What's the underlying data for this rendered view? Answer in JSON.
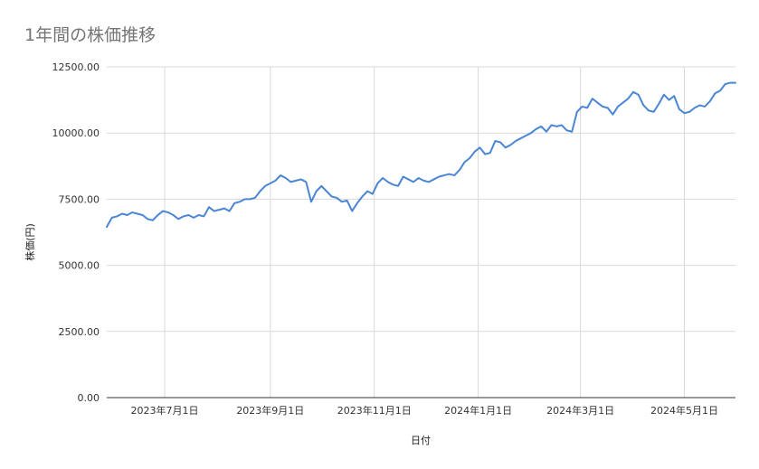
{
  "colors": {
    "line": "#4a86d4",
    "grid": "#d9d9d9",
    "baseline": "#333333",
    "title": "#757575"
  },
  "chart_data": {
    "type": "line",
    "title": "1年間の株価推移",
    "xlabel": "日付",
    "ylabel": "株価(円)",
    "ylim": [
      0,
      12500
    ],
    "yticks": [
      0,
      2500,
      5000,
      7500,
      10000,
      12500
    ],
    "ytick_labels": [
      "0.00",
      "2500.00",
      "5000.00",
      "7500.00",
      "10000.00",
      "12500.00"
    ],
    "xlim": [
      "2023-05-28",
      "2024-05-31"
    ],
    "xticks": [
      "2023-07-01",
      "2023-09-01",
      "2023-11-01",
      "2024-01-01",
      "2024-03-01",
      "2024-05-01"
    ],
    "xtick_labels": [
      "2023年7月1日",
      "2023年9月1日",
      "2023年11月1日",
      "2024年1月1日",
      "2024年3月1日",
      "2024年5月1日"
    ],
    "grid": true,
    "legend": "none",
    "series": [
      {
        "x": [
          "2023-05-28",
          "2023-05-31",
          "2023-06-03",
          "2023-06-06",
          "2023-06-09",
          "2023-06-12",
          "2023-06-15",
          "2023-06-18",
          "2023-06-21",
          "2023-06-24",
          "2023-06-27",
          "2023-06-30",
          "2023-07-03",
          "2023-07-06",
          "2023-07-09",
          "2023-07-12",
          "2023-07-15",
          "2023-07-18",
          "2023-07-21",
          "2023-07-24",
          "2023-07-27",
          "2023-07-30",
          "2023-08-02",
          "2023-08-05",
          "2023-08-08",
          "2023-08-11",
          "2023-08-14",
          "2023-08-17",
          "2023-08-20",
          "2023-08-23",
          "2023-08-26",
          "2023-08-29",
          "2023-09-01",
          "2023-09-04",
          "2023-09-07",
          "2023-09-10",
          "2023-09-13",
          "2023-09-16",
          "2023-09-19",
          "2023-09-22",
          "2023-09-25",
          "2023-09-28",
          "2023-10-01",
          "2023-10-04",
          "2023-10-07",
          "2023-10-10",
          "2023-10-13",
          "2023-10-16",
          "2023-10-19",
          "2023-10-22",
          "2023-10-25",
          "2023-10-28",
          "2023-10-31",
          "2023-11-03",
          "2023-11-06",
          "2023-11-09",
          "2023-11-12",
          "2023-11-15",
          "2023-11-18",
          "2023-11-21",
          "2023-11-24",
          "2023-11-27",
          "2023-11-30",
          "2023-12-03",
          "2023-12-06",
          "2023-12-09",
          "2023-12-12",
          "2023-12-15",
          "2023-12-18",
          "2023-12-21",
          "2023-12-24",
          "2023-12-27",
          "2023-12-30",
          "2024-01-02",
          "2024-01-05",
          "2024-01-08",
          "2024-01-11",
          "2024-01-14",
          "2024-01-17",
          "2024-01-20",
          "2024-01-23",
          "2024-01-26",
          "2024-01-29",
          "2024-02-01",
          "2024-02-04",
          "2024-02-07",
          "2024-02-10",
          "2024-02-13",
          "2024-02-16",
          "2024-02-19",
          "2024-02-22",
          "2024-02-25",
          "2024-02-28",
          "2024-03-02",
          "2024-03-05",
          "2024-03-08",
          "2024-03-11",
          "2024-03-14",
          "2024-03-17",
          "2024-03-20",
          "2024-03-23",
          "2024-03-26",
          "2024-03-29",
          "2024-04-01",
          "2024-04-04",
          "2024-04-07",
          "2024-04-10",
          "2024-04-13",
          "2024-04-16",
          "2024-04-19",
          "2024-04-22",
          "2024-04-25",
          "2024-04-28",
          "2024-05-01",
          "2024-05-04",
          "2024-05-07",
          "2024-05-10",
          "2024-05-13",
          "2024-05-16",
          "2024-05-19",
          "2024-05-22",
          "2024-05-25",
          "2024-05-28",
          "2024-05-31"
        ],
        "values": [
          6450,
          6800,
          6850,
          6950,
          6900,
          7000,
          6950,
          6900,
          6750,
          6700,
          6900,
          7050,
          7000,
          6900,
          6750,
          6850,
          6900,
          6800,
          6900,
          6850,
          7200,
          7050,
          7100,
          7150,
          7050,
          7350,
          7400,
          7500,
          7500,
          7550,
          7800,
          8000,
          8100,
          8200,
          8400,
          8300,
          8150,
          8200,
          8250,
          8150,
          7400,
          7800,
          8000,
          7800,
          7600,
          7550,
          7400,
          7450,
          7050,
          7350,
          7600,
          7800,
          7700,
          8100,
          8300,
          8150,
          8050,
          8000,
          8350,
          8250,
          8150,
          8300,
          8200,
          8150,
          8250,
          8350,
          8400,
          8450,
          8400,
          8600,
          8900,
          9050,
          9300,
          9450,
          9200,
          9250,
          9700,
          9650,
          9450,
          9550,
          9700,
          9800,
          9900,
          10000,
          10150,
          10250,
          10050,
          10300,
          10250,
          10300,
          10100,
          10050,
          10800,
          11000,
          10950,
          11300,
          11150,
          11000,
          10950,
          10700,
          11000,
          11150,
          11300,
          11550,
          11450,
          11050,
          10850,
          10800,
          11100,
          11450,
          11250,
          11400,
          10900,
          10750,
          10800,
          10950,
          11050,
          11000,
          11200,
          11500,
          11600,
          11850,
          11900,
          11900
        ]
      }
    ]
  }
}
